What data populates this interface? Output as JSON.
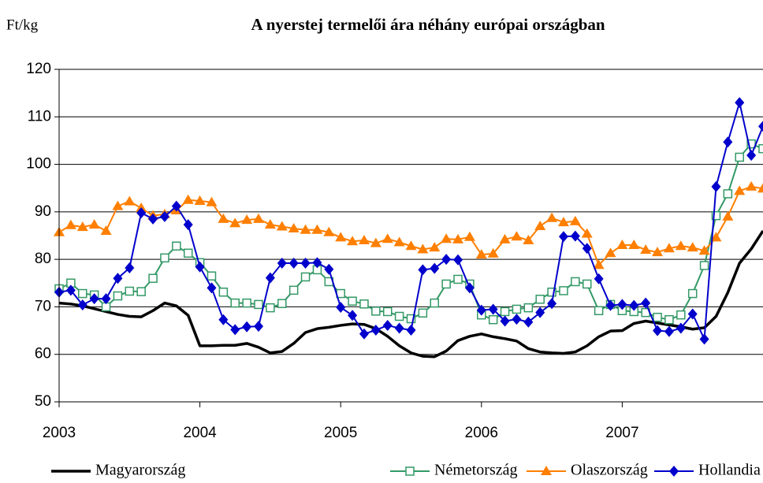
{
  "chart_data": {
    "type": "line",
    "title": "A nyerstej termelői ára néhány európai országban",
    "y_label": "Ft/kg",
    "categories": [
      "2003",
      null,
      null,
      null,
      null,
      null,
      null,
      null,
      null,
      null,
      null,
      null,
      "2004",
      null,
      null,
      null,
      null,
      null,
      null,
      null,
      null,
      null,
      null,
      null,
      "2005",
      null,
      null,
      null,
      null,
      null,
      null,
      null,
      null,
      null,
      null,
      null,
      "2006",
      null,
      null,
      null,
      null,
      null,
      null,
      null,
      null,
      null,
      null,
      null,
      "2007",
      null,
      null,
      null,
      null,
      null,
      null,
      null,
      null,
      null,
      null,
      null,
      null
    ],
    "ylim": [
      50,
      120
    ],
    "yticks": [
      50,
      60,
      70,
      80,
      90,
      100,
      110,
      120
    ],
    "grid": true,
    "legend": "bottom",
    "series": [
      {
        "name": "Magyarország",
        "color": "#000000",
        "marker": "none",
        "values": [
          70.8,
          70.6,
          70.2,
          69.6,
          69,
          68.4,
          68,
          67.9,
          69.2,
          70.8,
          70.2,
          68.2,
          61.8,
          61.8,
          61.9,
          61.9,
          62.3,
          61.5,
          60.3,
          60.6,
          62.3,
          64.6,
          65.4,
          65.7,
          66.1,
          66.4,
          66.3,
          65.4,
          63.8,
          61.8,
          60.3,
          59.6,
          59.5,
          60.7,
          62.9,
          63.8,
          64.3,
          63.7,
          63.3,
          62.8,
          61.2,
          60.5,
          60.3,
          60.2,
          60.5,
          61.8,
          63.7,
          64.9,
          65,
          66.5,
          67,
          66.6,
          66.2,
          65.8,
          65.3,
          65.6,
          68,
          73,
          79.2,
          82.2,
          86
        ]
      },
      {
        "name": "Németország",
        "color": "#339966",
        "marker": "square",
        "values": [
          73.8,
          75,
          72.8,
          72.5,
          70,
          72.3,
          73.3,
          73.2,
          76,
          80.3,
          82.8,
          81.3,
          79.3,
          76.5,
          73.1,
          70.8,
          70.8,
          70.5,
          69.8,
          70.7,
          73.5,
          76.3,
          77.8,
          75.3,
          72.8,
          71.2,
          70.6,
          69.1,
          69,
          68,
          67.5,
          68.7,
          70.8,
          74.8,
          75.8,
          74.8,
          68.3,
          67.3,
          69,
          69.5,
          69.8,
          71.6,
          73.1,
          73.4,
          75.3,
          74.8,
          69.2,
          70.5,
          69.2,
          69,
          68.8,
          67.8,
          67.3,
          68.3,
          72.8,
          78.7,
          89.2,
          93.8,
          101.5,
          104.3,
          103.3
        ]
      },
      {
        "name": "Olaszország",
        "color": "#ff7f00",
        "marker": "triangle",
        "values": [
          85.7,
          87.2,
          86.8,
          87.3,
          86,
          91.2,
          92.2,
          90.8,
          89.2,
          89.5,
          90.3,
          92.5,
          92.3,
          92,
          88.5,
          87.6,
          88.3,
          88.5,
          87.3,
          86.9,
          86.5,
          86.2,
          86.2,
          85.7,
          84.6,
          83.8,
          84,
          83.4,
          84.3,
          83.6,
          82.8,
          82.1,
          82.5,
          84.3,
          84.2,
          84.7,
          81,
          81.2,
          84.2,
          84.8,
          84,
          87,
          88.7,
          87.8,
          88,
          85.4,
          78.8,
          81.3,
          83,
          83,
          82,
          81.5,
          82.3,
          82.8,
          82.5,
          81.8,
          84.6,
          89,
          94.4,
          95.3,
          94.9
        ]
      },
      {
        "name": "Hollandia",
        "color": "#0000cc",
        "marker": "diamond",
        "values": [
          73.1,
          73.5,
          70.4,
          71.7,
          71.7,
          76,
          78.2,
          89.8,
          88.5,
          89,
          91.2,
          87.3,
          78.4,
          74,
          67.3,
          65.2,
          65.8,
          65.9,
          76.1,
          79.2,
          79.2,
          79.2,
          79.3,
          77.9,
          69.9,
          68.2,
          64.3,
          65.1,
          66.1,
          65.5,
          65.1,
          77.8,
          78.1,
          80,
          79.9,
          74,
          69.3,
          69.5,
          67,
          67.4,
          66.8,
          68.8,
          70.7,
          84.8,
          84.9,
          82.3,
          75.9,
          70.3,
          70.5,
          70.3,
          70.8,
          65,
          64.8,
          65.5,
          68.5,
          63.2,
          95.3,
          104.7,
          113,
          101.9,
          108
        ]
      }
    ]
  }
}
